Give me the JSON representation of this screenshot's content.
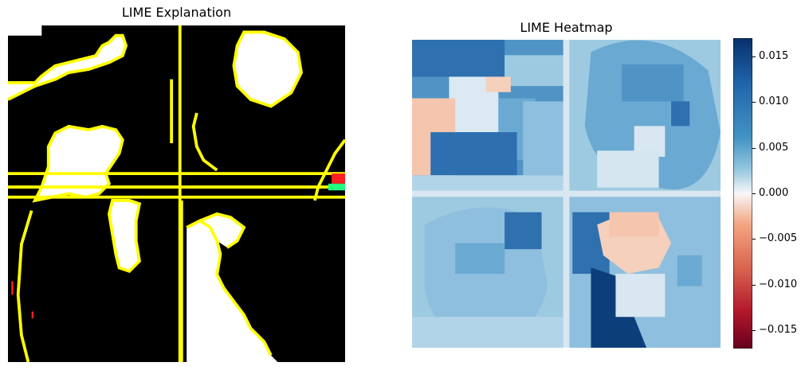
{
  "chart_data": [
    {
      "type": "heatmap",
      "title": "LIME Explanation",
      "description_colors": {
        "background": "#000000",
        "region": "#ffffff",
        "boundary": "#ffff00"
      }
    },
    {
      "type": "heatmap",
      "title": "LIME Heatmap",
      "colormap": "RdBu",
      "colorbar": {
        "range": [
          -0.017,
          0.017
        ],
        "ticks": [
          "0.015",
          "0.010",
          "0.005",
          "0.000",
          "−0.005",
          "−0.010",
          "−0.015"
        ],
        "tick_values": [
          0.015,
          0.01,
          0.005,
          0.0,
          -0.005,
          -0.01,
          -0.015
        ]
      }
    }
  ]
}
